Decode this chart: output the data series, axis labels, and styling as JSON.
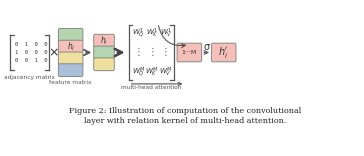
{
  "fig_width": 3.64,
  "fig_height": 1.56,
  "dpi": 100,
  "bg_color": "#ffffff",
  "caption_line1": "Figure 2: Illustration of computation of the convolutional",
  "caption_line2": "layer with relation kernel of multi-head attention.",
  "caption_fontsize": 5.8,
  "colors": {
    "green": "#b5d5b0",
    "pink": "#f0a8a0",
    "yellow": "#f0e0a0",
    "blue": "#aabfda",
    "light_pink": "#f5c0b8",
    "border": "#999999"
  },
  "adjacency_label": "adjacency matrix",
  "feature_label": "feature matrix",
  "mha_label": "multi-head attention",
  "concat_label": "1⋅⋅⋅M",
  "sigma_label": "σ"
}
